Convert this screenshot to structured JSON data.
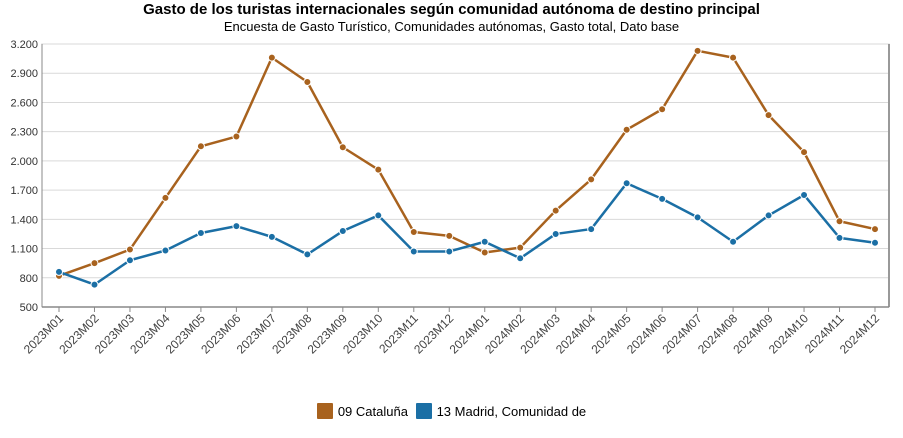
{
  "chart_data": {
    "type": "line",
    "title": "Gasto de los turistas internacionales según comunidad autónoma de destino principal",
    "subtitle": "Encuesta de Gasto Turístico, Comunidades autónomas, Gasto total, Dato base",
    "xlabel": "",
    "ylabel": "",
    "ylim": [
      500,
      3200
    ],
    "yticks": [
      500,
      800,
      1100,
      1400,
      1700,
      2000,
      2300,
      2600,
      2900,
      3200
    ],
    "ytick_labels": [
      "500",
      "800",
      "1.100",
      "1.400",
      "1.700",
      "2.000",
      "2.300",
      "2.600",
      "2.900",
      "3.200"
    ],
    "grid": true,
    "legend_position": "bottom",
    "categories": [
      "2023M01",
      "2023M02",
      "2023M03",
      "2023M04",
      "2023M05",
      "2023M06",
      "2023M07",
      "2023M08",
      "2023M09",
      "2023M10",
      "2023M11",
      "2023M12",
      "2024M01",
      "2024M02",
      "2024M03",
      "2024M04",
      "2024M05",
      "2024M06",
      "2024M07",
      "2024M08",
      "2024M09",
      "2024M10",
      "2024M11",
      "2024M12"
    ],
    "series": [
      {
        "name": "09 Cataluña",
        "color": "#a8621e",
        "values": [
          820,
          950,
          1090,
          1620,
          2150,
          2250,
          3060,
          2810,
          2140,
          1910,
          1270,
          1230,
          1060,
          1110,
          1490,
          1810,
          2320,
          2530,
          3130,
          3060,
          2470,
          2090,
          1380,
          1300
        ]
      },
      {
        "name": "13 Madrid, Comunidad de",
        "color": "#1b6fa5",
        "values": [
          860,
          730,
          980,
          1080,
          1260,
          1330,
          1220,
          1040,
          1280,
          1440,
          1070,
          1070,
          1170,
          1000,
          1250,
          1300,
          1770,
          1610,
          1420,
          1170,
          1440,
          1650,
          1210,
          1160
        ]
      }
    ]
  }
}
